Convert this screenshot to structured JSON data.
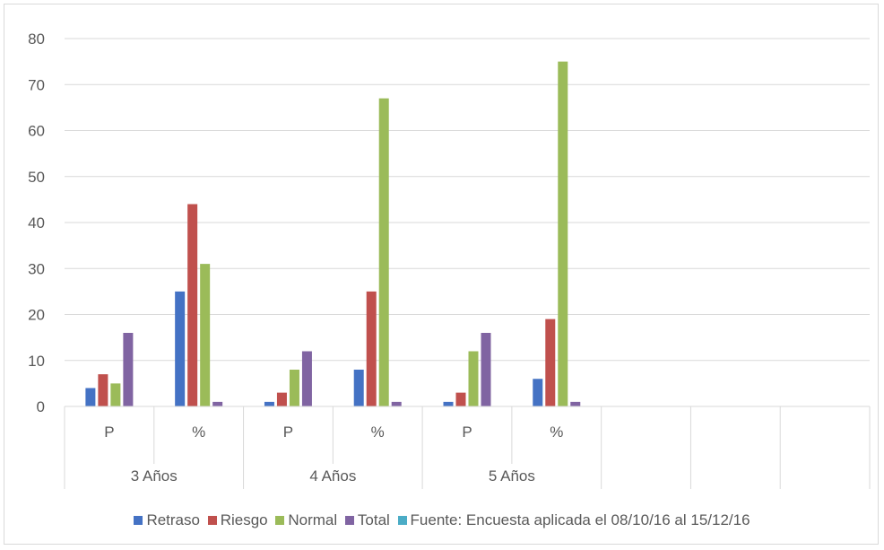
{
  "chart_data": {
    "type": "bar",
    "ylim": [
      0,
      80
    ],
    "yticks": [
      0,
      10,
      20,
      30,
      40,
      50,
      60,
      70,
      80
    ],
    "grid": true,
    "legend_position": "bottom",
    "groups": [
      {
        "label": "3 Años",
        "categories": [
          "P",
          "%"
        ]
      },
      {
        "label": "4 Años",
        "categories": [
          "P",
          "%"
        ]
      },
      {
        "label": "5 Años",
        "categories": [
          "P",
          "%"
        ]
      },
      {
        "label": "",
        "categories": [
          ""
        ]
      },
      {
        "label": "",
        "categories": [
          ""
        ]
      },
      {
        "label": "",
        "categories": [
          ""
        ]
      }
    ],
    "series": [
      {
        "name": "Retraso",
        "color": "#4472C4",
        "values": [
          4,
          25,
          1,
          8,
          1,
          6
        ]
      },
      {
        "name": "Riesgo",
        "color": "#C0504D",
        "values": [
          7,
          44,
          3,
          25,
          3,
          19
        ]
      },
      {
        "name": "Normal",
        "color": "#9BBB59",
        "values": [
          5,
          31,
          8,
          67,
          12,
          75
        ]
      },
      {
        "name": "Total",
        "color": "#8064A2",
        "values": [
          16,
          1,
          12,
          1,
          16,
          1
        ]
      },
      {
        "name": "Fuente: Encuesta aplicada el 08/10/16 al 15/12/16",
        "color": "#4BACC6",
        "values": []
      }
    ]
  }
}
